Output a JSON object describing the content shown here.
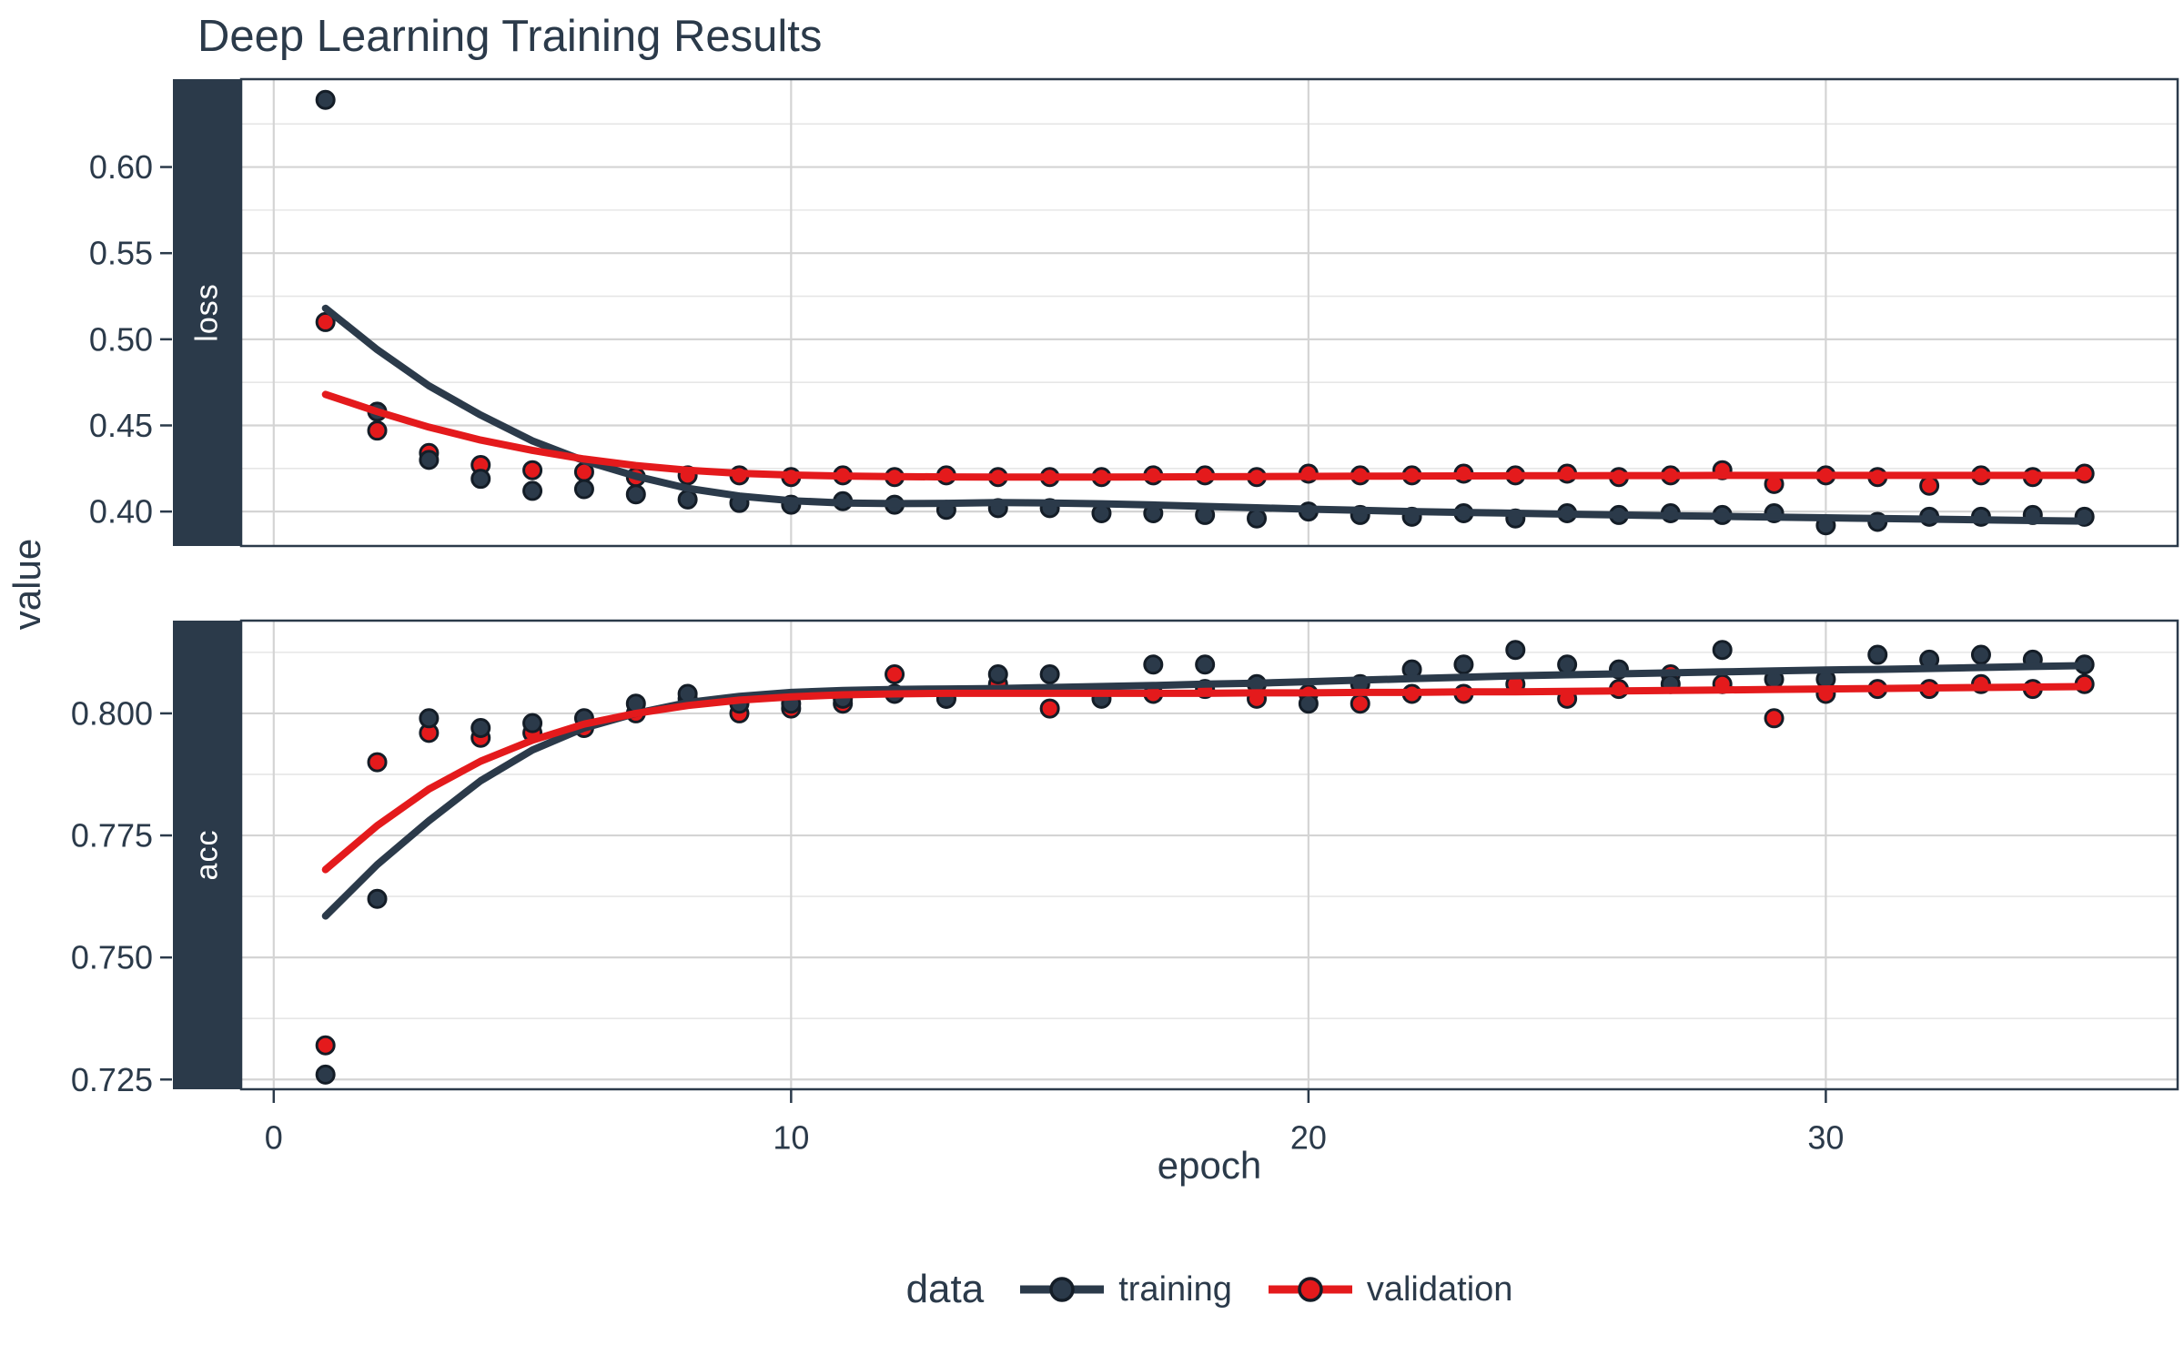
{
  "title": "Deep Learning Training Results",
  "x_axis": {
    "label": "epoch",
    "tick_labels": [
      "0",
      "10",
      "20",
      "30"
    ]
  },
  "y_axis": {
    "label": "value"
  },
  "legend": {
    "title": "data",
    "items": [
      {
        "label": "training",
        "color": "#2b3a4a"
      },
      {
        "label": "validation",
        "color": "#e41a1c"
      }
    ]
  },
  "colors": {
    "training": "#2b3a4a",
    "validation": "#e41a1c",
    "point_outline": "#141d27",
    "grid_major": "#d4d4d4",
    "grid_minor": "#e6e6e6",
    "panel_border": "#2b3a4a",
    "strip_bg": "#2b3a4a",
    "strip_text": "#ffffff",
    "text": "#2b3a4a",
    "background": "#ffffff"
  },
  "chart_data": {
    "type": "scatter",
    "title": "Deep Learning Training Results",
    "xlabel": "epoch",
    "ylabel": "value",
    "grid": "on",
    "legend_position": "bottom",
    "epochs": [
      1,
      2,
      3,
      4,
      5,
      6,
      7,
      8,
      9,
      10,
      11,
      12,
      13,
      14,
      15,
      16,
      17,
      18,
      19,
      20,
      21,
      22,
      23,
      24,
      25,
      26,
      27,
      28,
      29,
      30,
      31,
      32,
      33,
      34,
      35
    ],
    "xticks": [
      0,
      10,
      20,
      30
    ],
    "xlim": [
      -0.63,
      36.8
    ],
    "facets": [
      {
        "name": "loss",
        "ylim": [
          0.38,
          0.651
        ],
        "yticks": [
          0.6,
          0.55,
          0.5,
          0.45,
          0.4
        ],
        "ytick_labels": [
          "0.60",
          "0.55",
          "0.50",
          "0.45",
          "0.40"
        ],
        "yticks_minor": [
          0.425,
          0.475,
          0.525,
          0.575,
          0.625
        ],
        "series": [
          {
            "name": "training",
            "color": "#2b3a4a",
            "points": [
              0.639,
              0.458,
              0.43,
              0.419,
              0.412,
              0.413,
              0.41,
              0.407,
              0.405,
              0.404,
              0.406,
              0.404,
              0.401,
              0.402,
              0.402,
              0.399,
              0.399,
              0.398,
              0.396,
              0.4,
              0.398,
              0.397,
              0.399,
              0.396,
              0.399,
              0.398,
              0.399,
              0.398,
              0.399,
              0.392,
              0.394,
              0.397,
              0.397,
              0.398,
              0.397
            ],
            "smooth": [
              0.518,
              0.494,
              0.473,
              0.456,
              0.441,
              0.4295,
              0.4205,
              0.4135,
              0.409,
              0.4063,
              0.405,
              0.4046,
              0.4048,
              0.4052,
              0.405,
              0.4045,
              0.4038,
              0.403,
              0.4022,
              0.4014,
              0.4007,
              0.4,
              0.3995,
              0.399,
              0.3985,
              0.398,
              0.3976,
              0.3972,
              0.3968,
              0.3964,
              0.396,
              0.3956,
              0.3952,
              0.3948,
              0.3944
            ]
          },
          {
            "name": "validation",
            "color": "#e41a1c",
            "points": [
              0.51,
              0.447,
              0.434,
              0.427,
              0.424,
              0.423,
              0.42,
              0.421,
              0.421,
              0.42,
              0.421,
              0.42,
              0.421,
              0.42,
              0.42,
              0.42,
              0.421,
              0.421,
              0.42,
              0.422,
              0.421,
              0.421,
              0.422,
              0.421,
              0.422,
              0.42,
              0.421,
              0.424,
              0.416,
              0.421,
              0.42,
              0.415,
              0.421,
              0.42,
              0.422
            ],
            "smooth": [
              0.468,
              0.458,
              0.449,
              0.4415,
              0.4355,
              0.4305,
              0.4267,
              0.424,
              0.4222,
              0.4212,
              0.4206,
              0.4203,
              0.4201,
              0.42,
              0.42,
              0.42,
              0.4201,
              0.4202,
              0.4203,
              0.4204,
              0.4205,
              0.4206,
              0.4207,
              0.4208,
              0.4208,
              0.4209,
              0.4209,
              0.421,
              0.421,
              0.421,
              0.421,
              0.421,
              0.421,
              0.421,
              0.421
            ]
          }
        ]
      },
      {
        "name": "acc",
        "ylim": [
          0.723,
          0.819
        ],
        "yticks": [
          0.8,
          0.775,
          0.75,
          0.725
        ],
        "ytick_labels": [
          "0.800",
          "0.775",
          "0.750",
          "0.725"
        ],
        "yticks_minor": [
          0.7375,
          0.7625,
          0.7875,
          0.8125
        ],
        "series": [
          {
            "name": "training",
            "color": "#2b3a4a",
            "points": [
              0.726,
              0.762,
              0.799,
              0.797,
              0.798,
              0.799,
              0.802,
              0.804,
              0.802,
              0.802,
              0.803,
              0.804,
              0.803,
              0.808,
              0.808,
              0.803,
              0.81,
              0.81,
              0.806,
              0.802,
              0.806,
              0.809,
              0.81,
              0.813,
              0.81,
              0.809,
              0.806,
              0.813,
              0.807,
              0.807,
              0.812,
              0.811,
              0.812,
              0.811,
              0.81
            ],
            "smooth": [
              0.7585,
              0.769,
              0.778,
              0.7862,
              0.7925,
              0.797,
              0.8,
              0.8022,
              0.8035,
              0.8043,
              0.8047,
              0.8049,
              0.805,
              0.8051,
              0.8053,
              0.8055,
              0.8057,
              0.806,
              0.8062,
              0.8065,
              0.8068,
              0.8071,
              0.8074,
              0.8077,
              0.8079,
              0.8081,
              0.8083,
              0.8085,
              0.8087,
              0.8089,
              0.809,
              0.8092,
              0.8094,
              0.8096,
              0.8098
            ]
          },
          {
            "name": "validation",
            "color": "#e41a1c",
            "points": [
              0.732,
              0.79,
              0.796,
              0.795,
              0.796,
              0.797,
              0.8,
              0.803,
              0.8,
              0.801,
              0.802,
              0.808,
              0.803,
              0.806,
              0.801,
              0.804,
              0.804,
              0.805,
              0.803,
              0.804,
              0.802,
              0.804,
              0.804,
              0.806,
              0.803,
              0.805,
              0.808,
              0.806,
              0.799,
              0.804,
              0.805,
              0.805,
              0.806,
              0.805,
              0.806
            ],
            "smooth": [
              0.768,
              0.777,
              0.7845,
              0.7902,
              0.7945,
              0.7978,
              0.8,
              0.8016,
              0.8027,
              0.8034,
              0.8038,
              0.804,
              0.8041,
              0.8041,
              0.8041,
              0.8041,
              0.8041,
              0.8041,
              0.8042,
              0.8042,
              0.8043,
              0.8043,
              0.8044,
              0.8044,
              0.8045,
              0.8046,
              0.8047,
              0.8048,
              0.8049,
              0.805,
              0.8051,
              0.8052,
              0.8053,
              0.8054,
              0.8055
            ]
          }
        ]
      }
    ]
  }
}
